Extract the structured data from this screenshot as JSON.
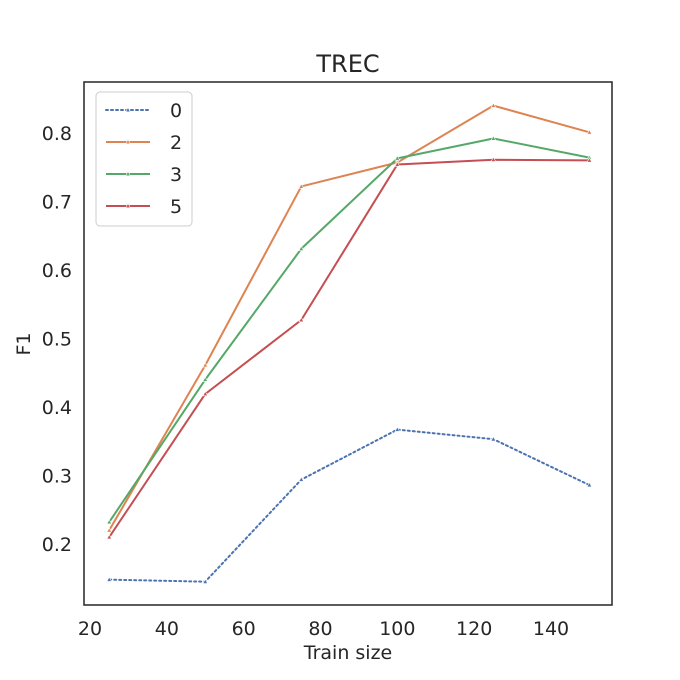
{
  "chart_data": {
    "type": "line",
    "title": "TREC",
    "xlabel": "Train size",
    "ylabel": "F1",
    "xlim": [
      20,
      155
    ],
    "ylim": [
      0.115,
      0.875
    ],
    "xticks": [
      20,
      40,
      60,
      80,
      100,
      120,
      140
    ],
    "yticks": [
      0.2,
      0.3,
      0.4,
      0.5,
      0.6,
      0.7,
      0.8
    ],
    "grid": false,
    "legend_position": "top-left",
    "x": [
      25,
      50,
      75,
      100,
      125,
      150
    ],
    "series": [
      {
        "name": "0",
        "color": "#4c72b0",
        "style": "dotted",
        "marker": "triangle",
        "values": [
          0.148,
          0.145,
          0.294,
          0.367,
          0.353,
          0.286
        ]
      },
      {
        "name": "2",
        "color": "#dd8452",
        "style": "solid",
        "marker": "triangle",
        "values": [
          0.22,
          0.461,
          0.722,
          0.757,
          0.84,
          0.801
        ]
      },
      {
        "name": "3",
        "color": "#55a868",
        "style": "solid",
        "marker": "triangle",
        "values": [
          0.232,
          0.44,
          0.631,
          0.763,
          0.792,
          0.764
        ]
      },
      {
        "name": "5",
        "color": "#c44e52",
        "style": "solid",
        "marker": "triangle",
        "values": [
          0.21,
          0.419,
          0.527,
          0.754,
          0.761,
          0.76
        ]
      }
    ]
  }
}
